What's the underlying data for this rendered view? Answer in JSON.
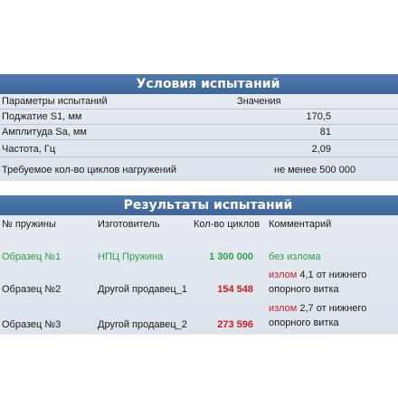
{
  "conditions": {
    "title": "Условия испытаний",
    "header_param": "Параметры испытаний",
    "header_value": "Значения",
    "rows": [
      {
        "label": "Поджатие S1, мм",
        "value": "170,5"
      },
      {
        "label": "Амплитуда Sa, мм",
        "value": "81"
      },
      {
        "label": "Частота, Гц",
        "value": "2,09"
      },
      {
        "label": "Требуемое кол-во циклов нагружений",
        "value": "не менее 500 000"
      }
    ]
  },
  "results": {
    "title": "Результаты испытаний",
    "headers": {
      "num": "№ пружины",
      "maker": "Изготовитель",
      "count": "Кол-во циклов",
      "comment": "Комментарий"
    },
    "rows": [
      {
        "num": "Образец №1",
        "maker": "НПЦ Пружина",
        "count": "1 300 000",
        "comment_a": "без излома",
        "comment_b": ""
      },
      {
        "num": "Образец №2",
        "maker": "Другой продавец_1",
        "count": "154 548",
        "comment_a": "излом",
        "comment_b": " 4,1 от нижнего опорного витка"
      },
      {
        "num": "Образец №3",
        "maker": "Другой продавец_2",
        "count": "273 596",
        "comment_a": "излом",
        "comment_b": " 2,7 от нижнего опорного витка"
      }
    ]
  },
  "colors": {
    "header_bg": "#46709f",
    "good": "#2ea043",
    "bad": "#cc2020"
  }
}
